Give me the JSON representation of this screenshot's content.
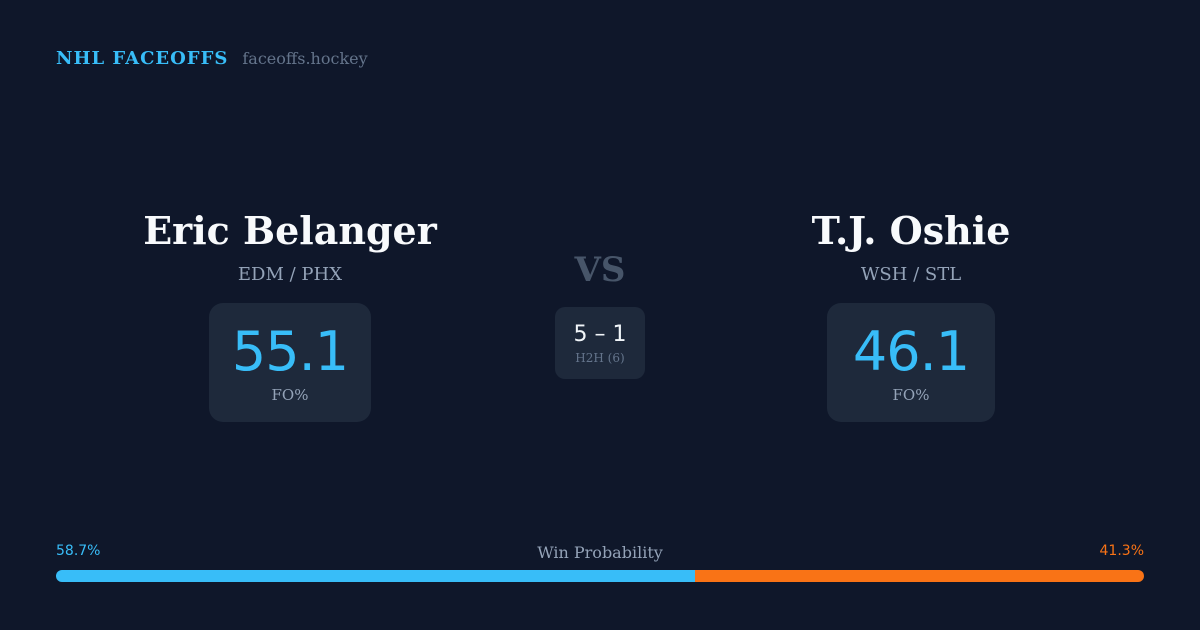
{
  "brand": {
    "name": "NHL FACEOFFS",
    "site": "faceoffs.hockey"
  },
  "left_player": {
    "name": "Eric Belanger",
    "teams": "EDM / PHX",
    "fo_pct": "55.1",
    "fo_label": "FO%"
  },
  "right_player": {
    "name": "T.J. Oshie",
    "teams": "WSH / STL",
    "fo_pct": "46.1",
    "fo_label": "FO%"
  },
  "vs_label": "VS",
  "h2h": {
    "score": "5 – 1",
    "label": "H2H (6)"
  },
  "win_probability": {
    "title": "Win Probability",
    "left_label": "58.7%",
    "right_label": "41.3%",
    "left_value": 58.7,
    "right_value": 41.3
  },
  "colors": {
    "left": "#38bdf8",
    "right": "#f97316",
    "background": "#0f172a",
    "card": "#1e293b"
  }
}
